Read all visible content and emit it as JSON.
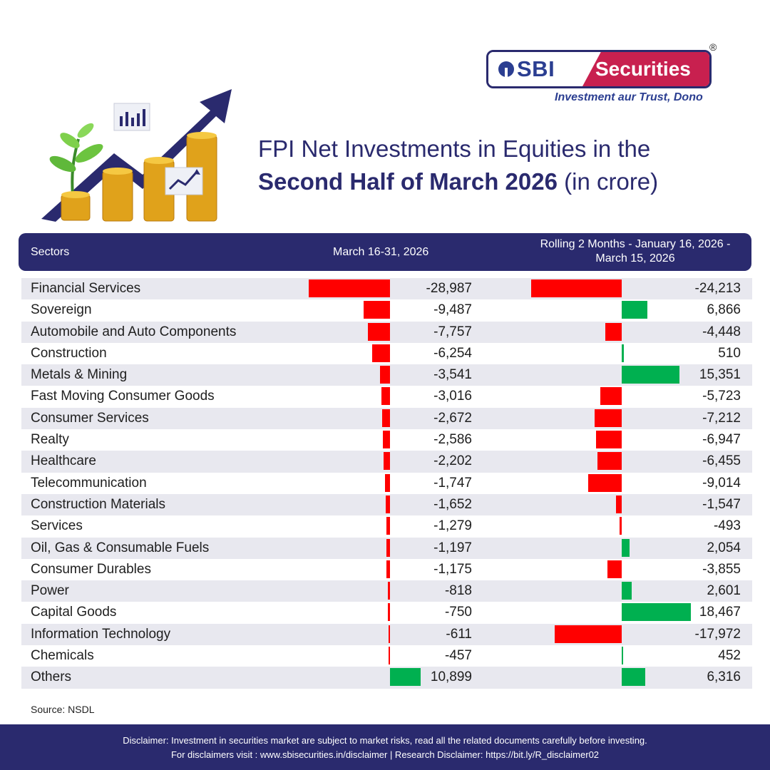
{
  "brand": {
    "logo_left": "SBI",
    "logo_right": "Securities",
    "registered": "®",
    "tagline": "Investment aur Trust, Dono"
  },
  "title": {
    "line1": "FPI Net Investments in Equities in the",
    "line2_bold": "Second Half of March 2026",
    "line2_rest": " (in crore)"
  },
  "table": {
    "col_sectors": "Sectors",
    "col_period1": "March 16-31, 2026",
    "col_period2": "Rolling 2 Months - January 16, 2026 - March 15, 2026"
  },
  "chart_data": {
    "type": "bar",
    "orientation": "horizontal",
    "categories": [
      "Financial Services",
      "Sovereign",
      "Automobile and Auto Components",
      "Construction",
      "Metals & Mining",
      "Fast Moving Consumer Goods",
      "Consumer Services",
      "Realty",
      "Healthcare",
      "Telecommunication",
      "Construction Materials",
      "Services",
      "Oil, Gas & Consumable Fuels",
      "Consumer Durables",
      "Power",
      "Capital Goods",
      "Information Technology",
      "Chemicals",
      "Others"
    ],
    "series": [
      {
        "name": "March 16-31, 2026",
        "values": [
          -28987,
          -9487,
          -7757,
          -6254,
          -3541,
          -3016,
          -2672,
          -2586,
          -2202,
          -1747,
          -1652,
          -1279,
          -1197,
          -1175,
          -818,
          -750,
          -611,
          -457,
          10899
        ],
        "labels": [
          "-28,987",
          "-9,487",
          "-7,757",
          "-6,254",
          "-3,541",
          "-3,016",
          "-2,672",
          "-2,586",
          "-2,202",
          "-1,747",
          "-1,652",
          "-1,279",
          "-1,197",
          "-1,175",
          "-818",
          "-750",
          "-611",
          "-457",
          "10,899"
        ]
      },
      {
        "name": "Rolling 2 Months - January 16, 2026 - March 15, 2026",
        "values": [
          -24213,
          6866,
          -4448,
          510,
          15351,
          -5723,
          -7212,
          -6947,
          -6455,
          -9014,
          -1547,
          -493,
          2054,
          -3855,
          2601,
          18467,
          -17972,
          452,
          6316
        ],
        "labels": [
          "-24,213",
          "6,866",
          "-4,448",
          "510",
          "15,351",
          "-5,723",
          "-7,212",
          "-6,947",
          "-6,455",
          "-9,014",
          "-1,547",
          "-493",
          "2,054",
          "-3,855",
          "2,601",
          "18,467",
          "-17,972",
          "452",
          "6,316"
        ]
      }
    ],
    "colors": {
      "negative": "#ff0000",
      "positive": "#00b050"
    }
  },
  "source": "Source: NSDL",
  "footer": {
    "line1": "Disclaimer: Investment in securities market are subject to market risks, read all the related documents carefully before investing.",
    "line2": "For disclaimers visit : www.sbisecurities.in/disclaimer | Research Disclaimer: https://bit.ly/R_disclaimer02"
  }
}
